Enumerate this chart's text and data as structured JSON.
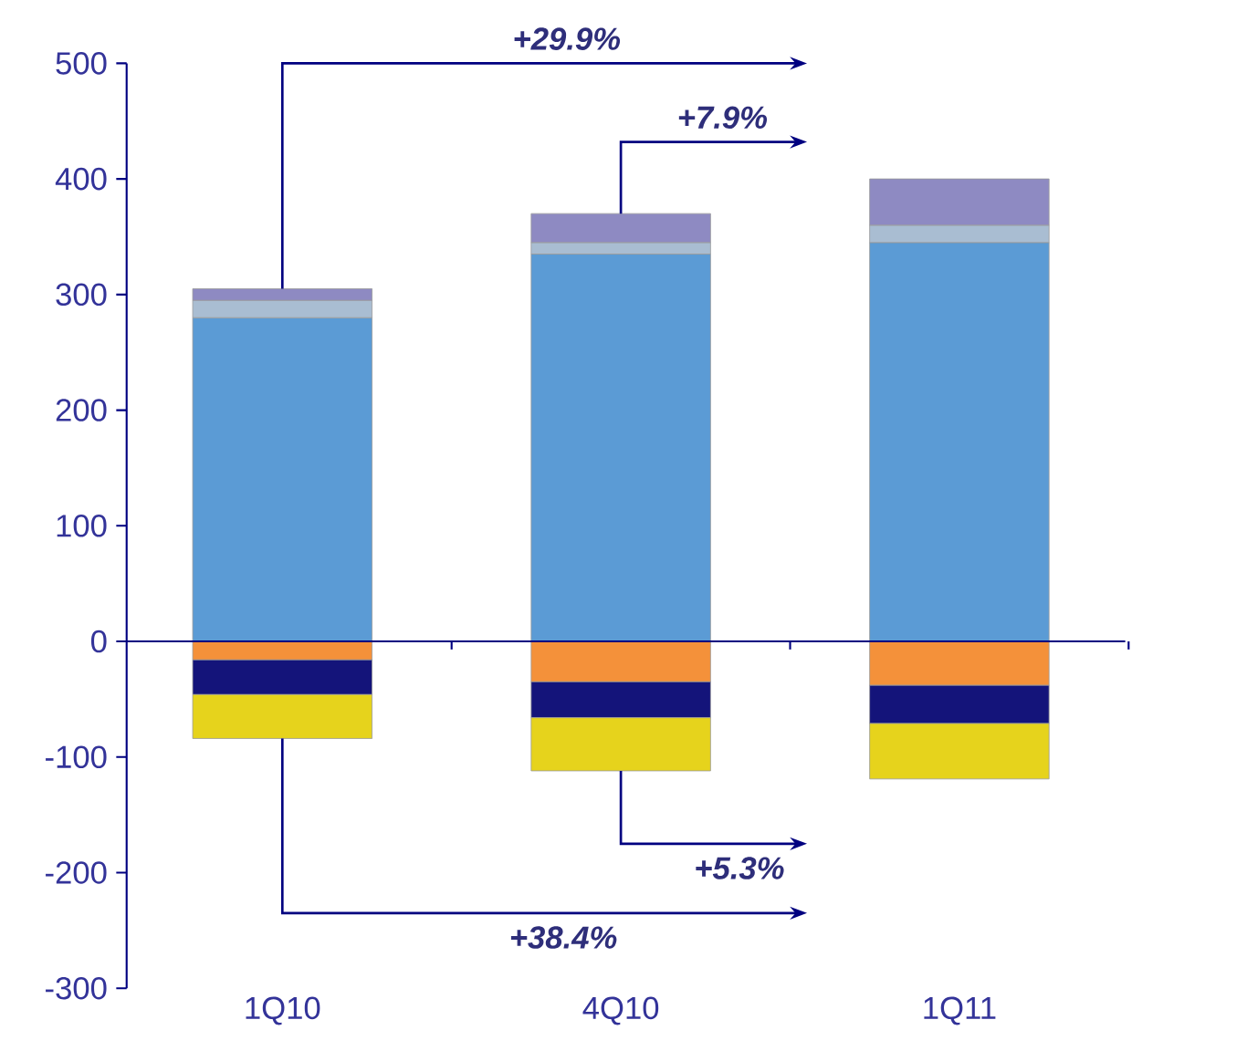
{
  "chart_data": {
    "type": "bar",
    "stacked": true,
    "categories": [
      "1Q10",
      "4Q10",
      "1Q11"
    ],
    "series": [
      {
        "color": "#5b9bd5",
        "values": [
          280,
          335,
          345
        ]
      },
      {
        "color": "#a9bdd2",
        "values": [
          15,
          10,
          15
        ]
      },
      {
        "color": "#8e8ac2",
        "values": [
          10,
          25,
          40
        ]
      },
      {
        "color": "#f4913a",
        "values": [
          -16,
          -35,
          -38
        ]
      },
      {
        "color": "#14147a",
        "values": [
          -30,
          -31,
          -33
        ]
      },
      {
        "color": "#e6d31c",
        "values": [
          -38,
          -46,
          -48
        ]
      }
    ],
    "ylim": [
      -300,
      500
    ],
    "yticks": [
      -300,
      -200,
      -100,
      0,
      100,
      200,
      300,
      400,
      500
    ],
    "ref_lines": [
      {
        "axis": "y",
        "value": 0,
        "color": "#000080"
      }
    ],
    "annotations": [
      "+29.9%",
      "+7.9%",
      "+5.3%",
      "+38.4%"
    ]
  }
}
